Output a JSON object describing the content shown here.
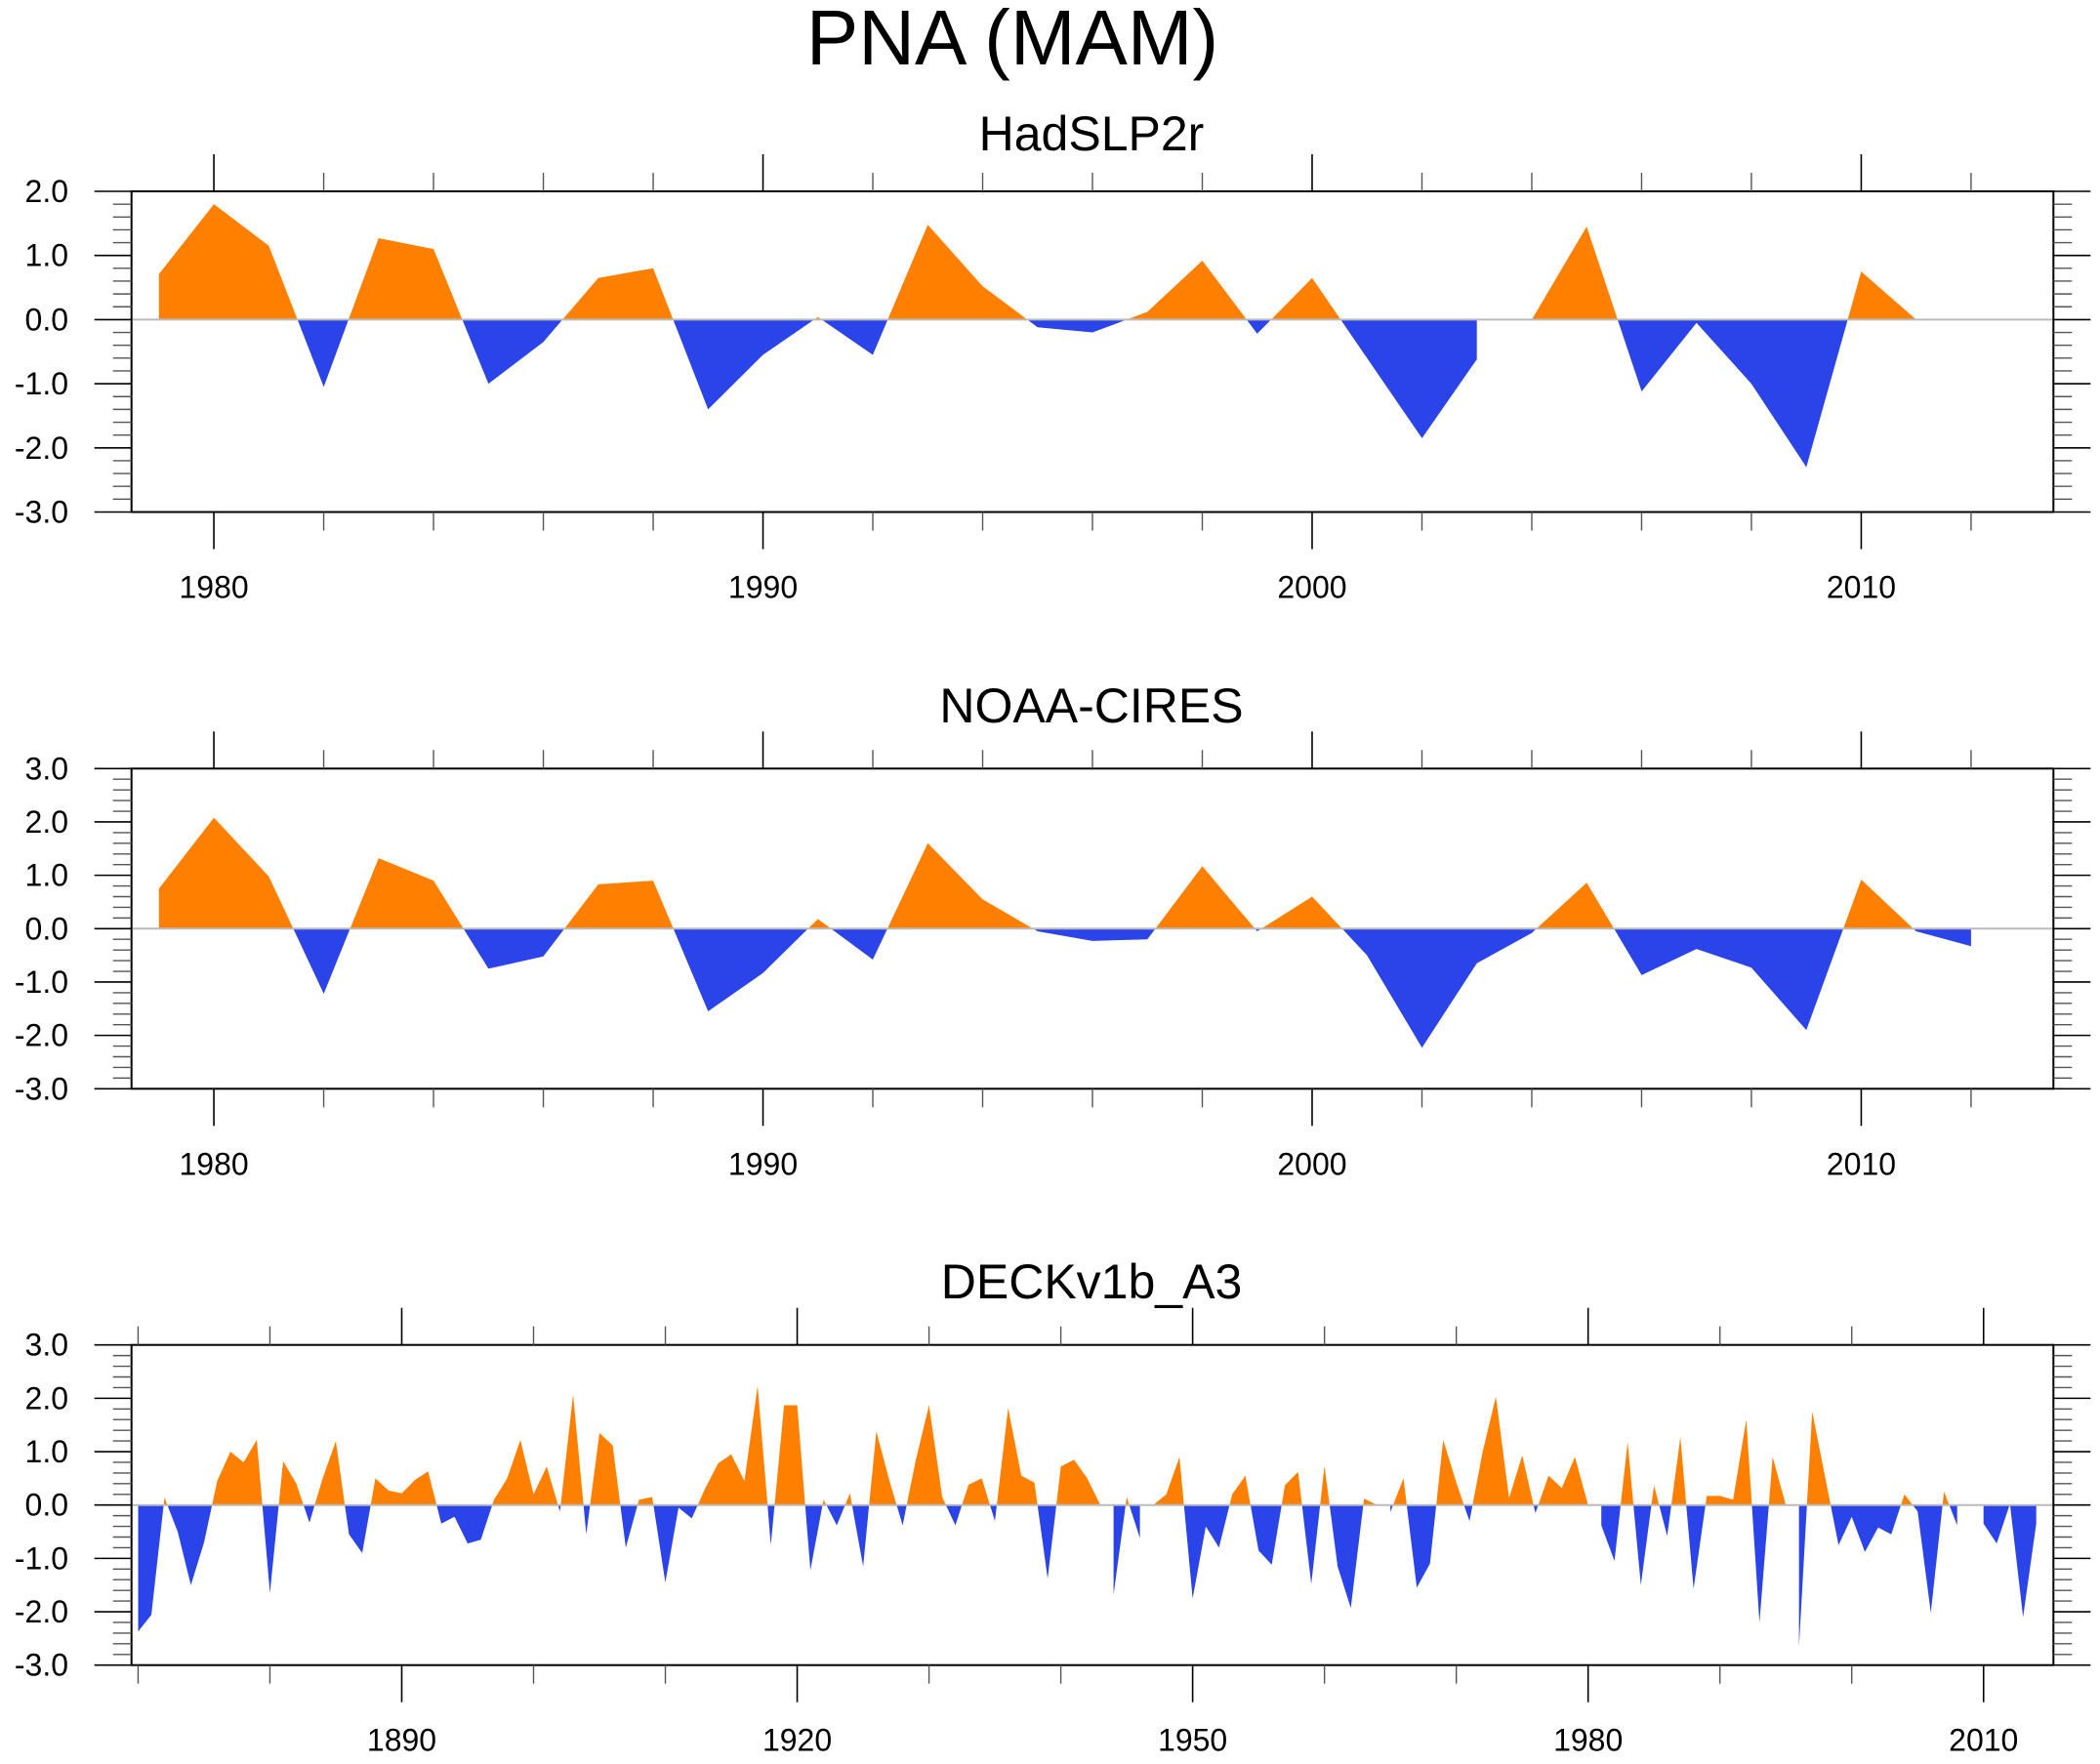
{
  "chart_data": {
    "title": "PNA (MAM)",
    "type": "area",
    "colors": {
      "positive": "#ff8000",
      "negative": "#2a44ea",
      "zero_line": "#bbbbbb"
    },
    "panels": [
      {
        "title": "HadSLP2r",
        "type": "area",
        "ylim": [
          -3.0,
          2.0
        ],
        "yticks": [
          "2.0",
          "1.0",
          "0.0",
          "-1.0",
          "-2.0",
          "-3.0"
        ],
        "xlim": [
          1978.5,
          2013.5
        ],
        "xticks": [
          "1980",
          "1990",
          "2000",
          "2010"
        ],
        "xlabel": "",
        "ylabel": "",
        "x": [
          1979,
          1980,
          1981,
          1982,
          1983,
          1984,
          1985,
          1986,
          1987,
          1988,
          1989,
          1990,
          1991,
          1992,
          1993,
          1994,
          1995,
          1996,
          1997,
          1998,
          1999,
          2000,
          2001,
          2002,
          2003,
          2004,
          2005,
          2006,
          2007,
          2008,
          2009,
          2010,
          2011,
          2012
        ],
        "values": [
          0.71,
          1.8,
          1.15,
          -1.05,
          1.27,
          1.1,
          -1.0,
          -0.35,
          0.65,
          0.8,
          -1.4,
          -0.55,
          0.04,
          -0.55,
          1.48,
          0.52,
          -0.12,
          -0.2,
          0.12,
          0.92,
          -0.22,
          0.65,
          -0.6,
          -1.85,
          -0.62,
          0.0,
          1.45,
          -1.12,
          -0.05,
          -1.0,
          -2.3,
          0.75,
          0.0,
          -0.4
        ]
      },
      {
        "title": "NOAA-CIRES",
        "type": "area",
        "ylim": [
          -3.0,
          3.0
        ],
        "yticks": [
          "3.0",
          "2.0",
          "1.0",
          "0.0",
          "-1.0",
          "-2.0",
          "-3.0"
        ],
        "xlim": [
          1978.5,
          2013.5
        ],
        "xticks": [
          "1980",
          "1990",
          "2000",
          "2010"
        ],
        "xlabel": "",
        "ylabel": "",
        "x": [
          1979,
          1980,
          1981,
          1982,
          1983,
          1984,
          1985,
          1986,
          1987,
          1988,
          1989,
          1990,
          1991,
          1992,
          1993,
          1994,
          1995,
          1996,
          1997,
          1998,
          1999,
          2000,
          2001,
          2002,
          2003,
          2004,
          2005,
          2006,
          2007,
          2008,
          2009,
          2010,
          2011,
          2012
        ],
        "values": [
          0.75,
          2.08,
          0.98,
          -1.22,
          1.32,
          0.9,
          -0.75,
          -0.52,
          0.83,
          0.9,
          -1.55,
          -0.83,
          0.18,
          -0.58,
          1.6,
          0.55,
          -0.05,
          -0.23,
          -0.2,
          1.17,
          -0.05,
          0.6,
          -0.5,
          -2.23,
          -0.65,
          -0.08,
          0.86,
          -0.87,
          -0.38,
          -0.73,
          -1.9,
          0.92,
          -0.05,
          -0.33
        ]
      },
      {
        "title": "DECKv1b_A3",
        "type": "area",
        "ylim": [
          -3.0,
          3.0
        ],
        "yticks": [
          "3.0",
          "2.0",
          "1.0",
          "0.0",
          "-1.0",
          "-2.0",
          "-3.0"
        ],
        "xlim": [
          1869.5,
          2015.3
        ],
        "xticks": [
          "1890",
          "1920",
          "1950",
          "1980",
          "2010"
        ],
        "xlabel": "",
        "ylabel": "",
        "x_start": 1870,
        "x_end": 2014,
        "values": [
          -2.37,
          -2.06,
          0.14,
          -0.5,
          -1.5,
          -0.7,
          0.45,
          1.0,
          0.8,
          1.22,
          -1.65,
          0.82,
          0.4,
          -0.33,
          0.5,
          1.2,
          -0.55,
          -0.9,
          0.5,
          0.27,
          0.22,
          0.47,
          0.63,
          -0.35,
          -0.22,
          -0.72,
          -0.65,
          0.1,
          0.5,
          1.22,
          0.2,
          0.72,
          -0.12,
          2.07,
          -0.55,
          1.35,
          1.12,
          -0.8,
          0.1,
          0.15,
          -1.45,
          -0.05,
          -0.25,
          0.3,
          0.78,
          0.95,
          0.45,
          2.23,
          -0.75,
          1.87,
          1.87,
          -1.22,
          0.1,
          -0.38,
          0.22,
          -1.15,
          1.38,
          0.45,
          -0.38,
          0.85,
          1.87,
          0.15,
          -0.38,
          0.38,
          0.5,
          -0.3,
          1.82,
          0.55,
          0.42,
          -1.38,
          0.72,
          0.85,
          0.5,
          0.0,
          -1.68,
          0.15,
          -0.62,
          0.0,
          0.2,
          0.9,
          -1.75,
          -0.4,
          -0.8,
          0.2,
          0.55,
          -0.85,
          -1.12,
          0.37,
          0.62,
          -1.48,
          0.73,
          -1.15,
          -1.93,
          0.12,
          0.0,
          -0.13,
          0.5,
          -1.55,
          -1.1,
          1.22,
          0.42,
          -0.3,
          1.0,
          2.03,
          0.13,
          0.93,
          -0.15,
          0.55,
          0.32,
          0.9,
          0.0,
          -0.38,
          -1.05,
          1.18,
          -1.5,
          0.37,
          -0.58,
          1.27,
          -1.57,
          0.17,
          0.17,
          0.1,
          1.6,
          -2.2,
          0.9,
          0.0,
          -2.65,
          1.75,
          0.5,
          -0.75,
          -0.22,
          -0.88,
          -0.42,
          -0.55,
          0.2,
          -0.12,
          -2.02,
          0.25,
          -0.38,
          0.0,
          -0.35,
          -0.72,
          0.02,
          -2.1,
          -0.35
        ]
      }
    ]
  }
}
